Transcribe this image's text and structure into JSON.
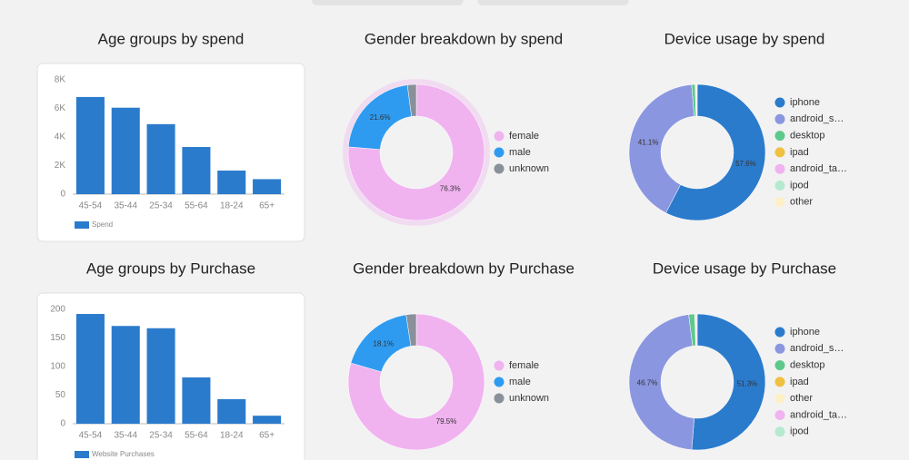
{
  "chart_data": [
    {
      "type": "bar",
      "title": "Age groups by spend",
      "categories": [
        "45-54",
        "35-44",
        "25-34",
        "55-64",
        "18-24",
        "65+"
      ],
      "series": [
        {
          "name": "Spend",
          "color": "#2b7bcc",
          "values": [
            6800,
            6050,
            4900,
            3300,
            1650,
            1050
          ]
        }
      ],
      "ylim": [
        0,
        8000
      ],
      "yticks": [
        0,
        {
          "value": 2000,
          "label": "2K"
        },
        {
          "value": 4000,
          "label": "4K"
        },
        {
          "value": 6000,
          "label": "6K"
        },
        {
          "value": 8000,
          "label": "8K"
        }
      ]
    },
    {
      "type": "donut",
      "title": "Gender breakdown by spend",
      "categories": [
        "female",
        "male",
        "unknown"
      ],
      "values": [
        76.3,
        21.6,
        2.1
      ],
      "value_labels": [
        "76.3%",
        "21.6%",
        null
      ],
      "colors": [
        "#f0b3f0",
        "#2e9bf0",
        "#8a9099"
      ]
    },
    {
      "type": "donut",
      "title": "Device usage by spend",
      "categories": [
        "iphone",
        "android_s…",
        "desktop",
        "ipad",
        "android_ta…",
        "ipod",
        "other"
      ],
      "values": [
        57.6,
        41.1,
        0.8,
        0.1,
        0.2,
        0.1,
        0.1
      ],
      "value_labels": [
        "57.6%",
        "41.1%",
        null,
        null,
        null,
        null,
        null
      ],
      "colors": [
        "#2b7bcc",
        "#8b96e0",
        "#5dc98a",
        "#f0c040",
        "#f0b3f0",
        "#b5ead0",
        "#fdf0c8"
      ]
    },
    {
      "type": "bar",
      "title": "Age groups by Purchase",
      "categories": [
        "45-54",
        "35-44",
        "25-34",
        "55-64",
        "18-24",
        "65+"
      ],
      "series": [
        {
          "name": "Website Purchases",
          "color": "#2b7bcc",
          "values": [
            192,
            171,
            167,
            81,
            43,
            14
          ]
        }
      ],
      "ylim": [
        0,
        200
      ],
      "yticks": [
        0,
        50,
        100,
        150,
        200
      ]
    },
    {
      "type": "donut",
      "title": "Gender breakdown by Purchase",
      "categories": [
        "female",
        "male",
        "unknown"
      ],
      "values": [
        79.5,
        18.1,
        2.4
      ],
      "value_labels": [
        "79.5%",
        "18.1%",
        null
      ],
      "colors": [
        "#f0b3f0",
        "#2e9bf0",
        "#8a9099"
      ]
    },
    {
      "type": "donut",
      "title": "Device usage by Purchase",
      "categories": [
        "iphone",
        "android_s…",
        "desktop",
        "ipad",
        "other",
        "android_ta…",
        "ipod"
      ],
      "values": [
        51.3,
        46.7,
        1.4,
        0.1,
        0.1,
        0.3,
        0.1
      ],
      "value_labels": [
        "51.3%",
        "46.7%",
        null,
        null,
        null,
        null,
        null
      ],
      "colors": [
        "#2b7bcc",
        "#8b96e0",
        "#5dc98a",
        "#f0c040",
        "#fdf0c8",
        "#f0b3f0",
        "#b5ead0"
      ]
    }
  ]
}
